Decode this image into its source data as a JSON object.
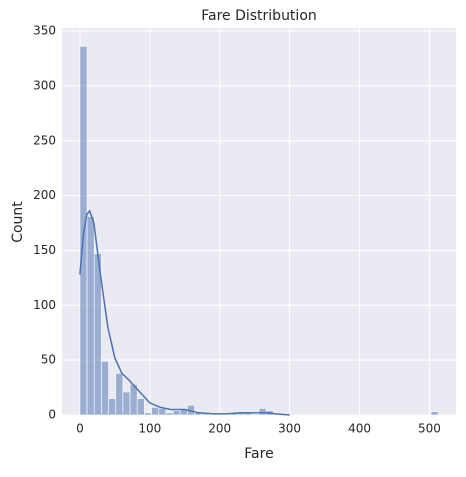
{
  "chart_data": {
    "type": "histogram",
    "title": "Fare Distribution",
    "x_label": "Fare",
    "y_label": "Count",
    "bins": [
      0,
      10.25,
      20.5,
      30.75,
      41,
      51.25,
      61.5,
      71.75,
      82,
      92.25,
      102.5,
      112.75,
      123,
      133.25,
      143.5,
      153.75,
      164,
      174.25,
      184.5,
      194.75,
      205,
      215.25,
      225.5,
      235.75,
      246,
      256.25,
      266.5,
      276.75,
      287,
      297.25,
      307.5,
      317.75,
      328,
      338.25,
      348.5,
      358.75,
      369,
      379.25,
      389.5,
      399.75,
      410,
      420.25,
      430.5,
      440.75,
      451,
      461.25,
      471.5,
      481.75,
      492,
      502.25,
      512.5
    ],
    "counts": [
      336,
      181,
      147,
      49,
      15,
      38,
      21,
      28,
      15,
      2,
      7,
      6,
      2,
      4,
      5,
      9,
      2,
      1,
      0,
      0,
      0,
      2,
      3,
      2,
      1,
      6,
      4,
      0,
      0,
      0,
      0,
      0,
      0,
      0,
      0,
      0,
      0,
      0,
      0,
      0,
      0,
      0,
      0,
      0,
      0,
      0,
      0,
      0,
      0,
      3
    ],
    "color": "#4c72b0",
    "kde": {
      "x": [
        0,
        5,
        10,
        14,
        20,
        25,
        30,
        40,
        50,
        60,
        70,
        80,
        90,
        100,
        115,
        130,
        150,
        170,
        190,
        210,
        230,
        250,
        265,
        280,
        300
      ],
      "y": [
        128,
        165,
        183,
        186,
        175,
        150,
        125,
        80,
        52,
        38,
        32,
        25,
        18,
        11,
        7,
        5,
        5,
        2,
        1,
        1,
        2,
        2,
        2,
        1,
        0
      ]
    },
    "xlim": [
      -25.6,
      538
    ],
    "ylim": [
      0,
      352.8
    ],
    "xticks": [
      0,
      100,
      200,
      300,
      400,
      500
    ],
    "yticks": [
      0,
      50,
      100,
      150,
      200,
      250,
      300,
      350
    ],
    "grid": true
  }
}
